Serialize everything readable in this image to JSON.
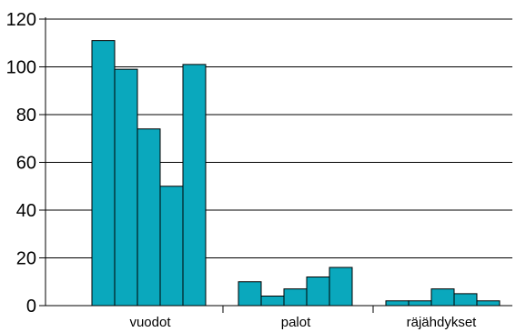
{
  "chart_data": {
    "type": "bar",
    "title": "",
    "xlabel": "",
    "ylabel": "",
    "categories": [
      "vuodot",
      "palot",
      "räjähdykset"
    ],
    "values": [
      [
        111,
        99,
        74,
        50,
        101
      ],
      [
        10,
        4,
        7,
        12,
        16
      ],
      [
        2,
        2,
        7,
        5,
        2
      ]
    ],
    "ylim": [
      0,
      120
    ],
    "yticks": [
      "0",
      "20",
      "40",
      "60",
      "80",
      "100",
      "120"
    ],
    "grid": true,
    "legend": "none",
    "bar_color": "#0aa8bd"
  }
}
